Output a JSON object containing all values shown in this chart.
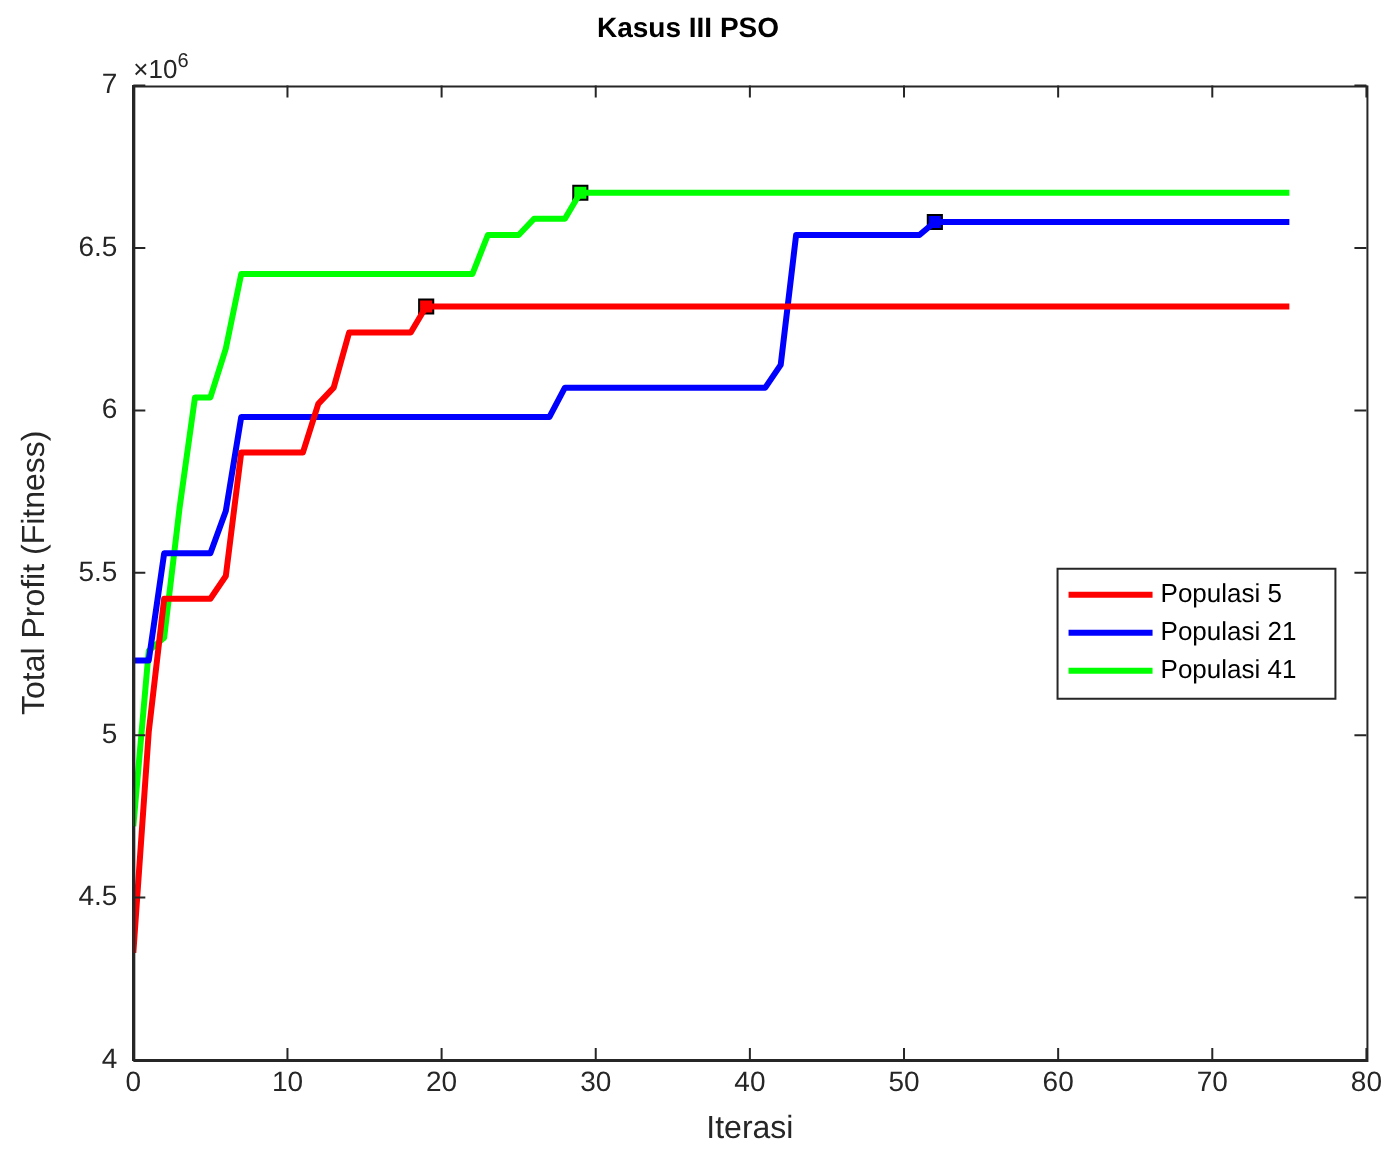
{
  "chart_data": {
    "type": "line",
    "title": "Kasus III PSO",
    "xlabel": "Iterasi",
    "ylabel": "Total Profit (Fitness)",
    "annotations": [
      "×10$^{6}$"
    ],
    "xlim": [
      0,
      80
    ],
    "xticks": [
      0,
      10,
      20,
      30,
      40,
      50,
      60,
      70,
      80
    ],
    "ylim": [
      4,
      7
    ],
    "yticks": [
      4,
      4.5,
      5,
      5.5,
      6,
      6.5,
      7
    ],
    "grid": false,
    "legend": "right",
    "marker": "none",
    "line_style": "solid",
    "series": [
      {
        "name": "Populasi 5",
        "color": "#ff0000",
        "x": [
          0,
          1,
          2,
          5,
          6,
          7,
          11,
          12,
          13,
          14,
          18,
          19,
          75
        ],
        "values": [
          4.33,
          5.01,
          5.42,
          5.42,
          5.49,
          5.87,
          5.87,
          6.02,
          6.07,
          6.24,
          6.24,
          6.32,
          6.32
        ]
      },
      {
        "name": "Populasi 21",
        "color": "#0000ff",
        "x": [
          0,
          1,
          2,
          5,
          6,
          7,
          27,
          28,
          41,
          42,
          43,
          51,
          52,
          75
        ],
        "values": [
          5.23,
          5.23,
          5.56,
          5.56,
          5.69,
          5.98,
          5.98,
          6.07,
          6.07,
          6.14,
          6.54,
          6.54,
          6.58,
          6.58
        ]
      },
      {
        "name": "Populasi 41",
        "color": "#00ff00",
        "x": [
          0,
          1,
          2,
          3,
          4,
          5,
          6,
          7,
          22,
          23,
          25,
          26,
          28,
          29,
          75
        ],
        "values": [
          4.72,
          5.26,
          5.3,
          5.7,
          6.04,
          6.04,
          6.19,
          6.42,
          6.42,
          6.54,
          6.54,
          6.59,
          6.59,
          6.67,
          6.67
        ]
      },
      {
        "type": "scatter",
        "marker": "square",
        "color": "#ff0000",
        "x": [
          19
        ],
        "values": [
          6.32
        ]
      },
      {
        "type": "scatter",
        "marker": "square",
        "color": "#0000ff",
        "x": [
          52
        ],
        "values": [
          6.58
        ]
      },
      {
        "type": "scatter",
        "marker": "square",
        "color": "#00ff00",
        "x": [
          29
        ],
        "values": [
          6.67
        ]
      }
    ]
  }
}
